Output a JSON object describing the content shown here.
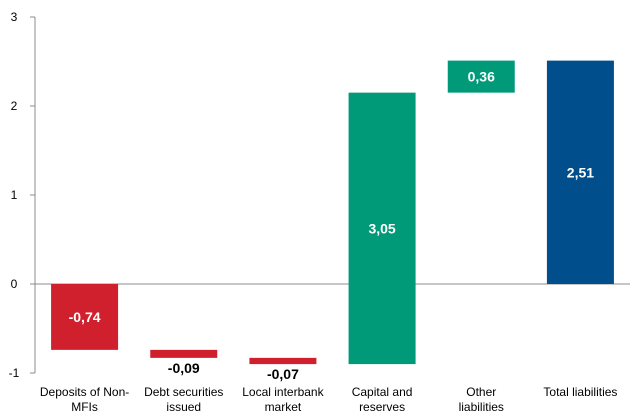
{
  "chart_data": {
    "type": "bar",
    "subtype": "waterfall",
    "categories": [
      [
        "Deposits of Non-",
        "MFIs"
      ],
      [
        "Debt securities",
        "issued"
      ],
      [
        "Local interbank",
        "market"
      ],
      [
        "Capital and",
        "reserves"
      ],
      [
        "Other",
        "liabilities"
      ],
      [
        "Total liabilities"
      ]
    ],
    "bars": [
      {
        "start": 0,
        "end": -0.74,
        "label": "-0,74",
        "color": "#d0202e",
        "label_position": "inside"
      },
      {
        "start": -0.74,
        "end": -0.83,
        "label": "-0,09",
        "color": "#d0202e",
        "label_position": "below"
      },
      {
        "start": -0.83,
        "end": -0.9,
        "label": "-0,07",
        "color": "#d0202e",
        "label_position": "below"
      },
      {
        "start": -0.9,
        "end": 2.15,
        "label": "3,05",
        "color": "#009a78",
        "label_position": "inside"
      },
      {
        "start": 2.15,
        "end": 2.51,
        "label": "0,36",
        "color": "#009a78",
        "label_position": "inside"
      },
      {
        "start": 0,
        "end": 2.51,
        "label": "2,51",
        "color": "#004f8c",
        "label_position": "inside"
      }
    ],
    "yticks": [
      -1,
      0,
      1,
      2,
      3
    ],
    "ylim": [
      -1,
      3
    ],
    "title": "",
    "xlabel": "",
    "ylabel": "",
    "grid": false,
    "legend": "none"
  }
}
